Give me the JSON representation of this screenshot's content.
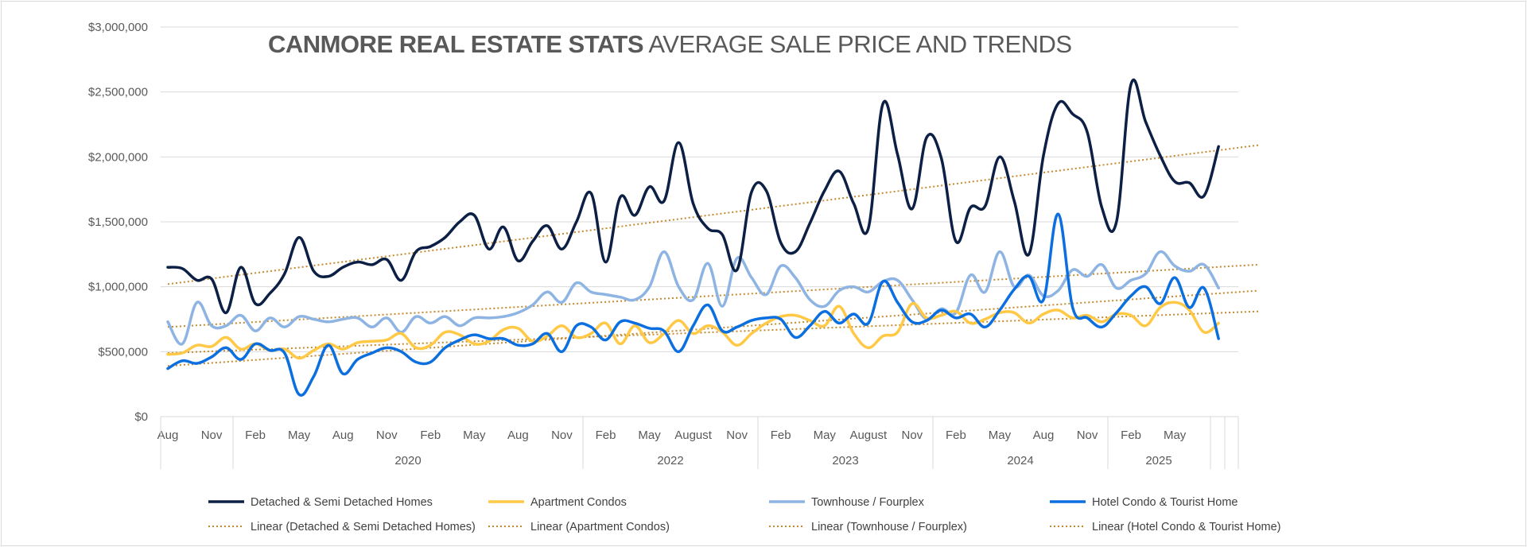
{
  "chart_data": {
    "type": "line",
    "title_bold": "CANMORE REAL ESTATE STATS",
    "title_rest": " AVERAGE SALE PRICE AND TRENDS",
    "ylim": [
      0,
      3000000
    ],
    "y_ticks": [
      "$0",
      "$500,000",
      "$1,000,000",
      "$1,500,000",
      "$2,000,000",
      "$2,500,000",
      "$3,000,000"
    ],
    "x_month_labels": [
      "Aug",
      "Nov",
      "Feb",
      "May",
      "Aug",
      "Nov",
      "Feb",
      "May",
      "Aug",
      "Nov",
      "Feb",
      "May",
      "August",
      "Nov",
      "Feb",
      "May",
      "August",
      "Nov",
      "Feb",
      "May",
      "Aug",
      "Nov",
      "Feb",
      "May"
    ],
    "year_labels": [
      "2020",
      "2022",
      "2023",
      "2024",
      "2025"
    ],
    "grid": "horizontal",
    "legend_position": "bottom",
    "series": [
      {
        "name": "Detached & Semi Detached Homes",
        "color": "#0c1f44",
        "values": [
          1150000,
          1140000,
          1050000,
          1060000,
          800000,
          1150000,
          870000,
          950000,
          1100000,
          1380000,
          1120000,
          1080000,
          1150000,
          1190000,
          1170000,
          1210000,
          1050000,
          1270000,
          1310000,
          1380000,
          1500000,
          1550000,
          1290000,
          1460000,
          1200000,
          1350000,
          1470000,
          1290000,
          1500000,
          1720000,
          1190000,
          1690000,
          1550000,
          1770000,
          1660000,
          2110000,
          1640000,
          1450000,
          1400000,
          1130000,
          1730000,
          1740000,
          1340000,
          1270000,
          1490000,
          1740000,
          1890000,
          1640000,
          1450000,
          2410000,
          2020000,
          1600000,
          2150000,
          1990000,
          1350000,
          1610000,
          1620000,
          2000000,
          1660000,
          1250000,
          2010000,
          2410000,
          2330000,
          2190000,
          1610000,
          1500000,
          2560000,
          2270000,
          2010000,
          1810000,
          1800000,
          1700000,
          2080000
        ],
        "trend": [
          1020000,
          2090000
        ]
      },
      {
        "name": "Apartment Condos",
        "color": "#ffc845",
        "values": [
          480000,
          490000,
          550000,
          540000,
          610000,
          520000,
          560000,
          510000,
          520000,
          450000,
          510000,
          560000,
          520000,
          570000,
          580000,
          590000,
          640000,
          530000,
          550000,
          650000,
          630000,
          560000,
          580000,
          670000,
          680000,
          580000,
          620000,
          700000,
          610000,
          640000,
          720000,
          560000,
          700000,
          570000,
          640000,
          740000,
          640000,
          700000,
          650000,
          550000,
          640000,
          720000,
          770000,
          780000,
          740000,
          700000,
          850000,
          640000,
          530000,
          620000,
          650000,
          870000,
          760000,
          780000,
          810000,
          720000,
          750000,
          800000,
          800000,
          720000,
          790000,
          820000,
          760000,
          780000,
          730000,
          790000,
          780000,
          700000,
          840000,
          880000,
          820000,
          650000,
          720000
        ],
        "trend": [
          490000,
          810000
        ]
      },
      {
        "name": "Townhouse / Fourplex",
        "color": "#8eb4e3",
        "values": [
          730000,
          560000,
          880000,
          700000,
          700000,
          780000,
          660000,
          760000,
          690000,
          770000,
          750000,
          730000,
          750000,
          760000,
          690000,
          760000,
          650000,
          770000,
          720000,
          770000,
          700000,
          760000,
          760000,
          770000,
          800000,
          860000,
          960000,
          880000,
          1030000,
          960000,
          940000,
          920000,
          900000,
          1000000,
          1270000,
          1000000,
          900000,
          1180000,
          850000,
          1220000,
          1070000,
          940000,
          1160000,
          1070000,
          900000,
          850000,
          970000,
          1000000,
          960000,
          1040000,
          1050000,
          900000,
          750000,
          830000,
          800000,
          1090000,
          960000,
          1270000,
          1000000,
          1090000,
          930000,
          970000,
          1130000,
          1080000,
          1170000,
          990000,
          1050000,
          1100000,
          1270000,
          1160000,
          1120000,
          1170000,
          990000
        ],
        "trend": [
          690000,
          1170000
        ]
      },
      {
        "name": "Hotel Condo & Tourist Home",
        "color": "#0c6fe0",
        "values": [
          370000,
          430000,
          410000,
          460000,
          530000,
          440000,
          560000,
          510000,
          490000,
          170000,
          310000,
          550000,
          330000,
          440000,
          490000,
          530000,
          500000,
          420000,
          420000,
          530000,
          590000,
          630000,
          600000,
          600000,
          550000,
          560000,
          640000,
          500000,
          700000,
          690000,
          590000,
          730000,
          720000,
          680000,
          660000,
          500000,
          700000,
          860000,
          660000,
          690000,
          740000,
          760000,
          750000,
          610000,
          700000,
          810000,
          720000,
          790000,
          720000,
          1040000,
          880000,
          730000,
          740000,
          820000,
          760000,
          790000,
          690000,
          820000,
          980000,
          1080000,
          900000,
          1560000,
          840000,
          760000,
          690000,
          800000,
          930000,
          1000000,
          870000,
          1070000,
          840000,
          990000,
          600000
        ],
        "trend": [
          390000,
          970000
        ]
      }
    ],
    "legend": {
      "row1": [
        "Detached & Semi Detached Homes",
        "Apartment Condos",
        "Townhouse / Fourplex",
        "Hotel Condo & Tourist Home"
      ],
      "row2": [
        "Linear (Detached & Semi Detached Homes)",
        "Linear (Apartment Condos)",
        "Linear (Townhouse / Fourplex)",
        "Linear (Hotel Condo & Tourist Home)"
      ],
      "trend_color": "#c58a2e"
    }
  }
}
